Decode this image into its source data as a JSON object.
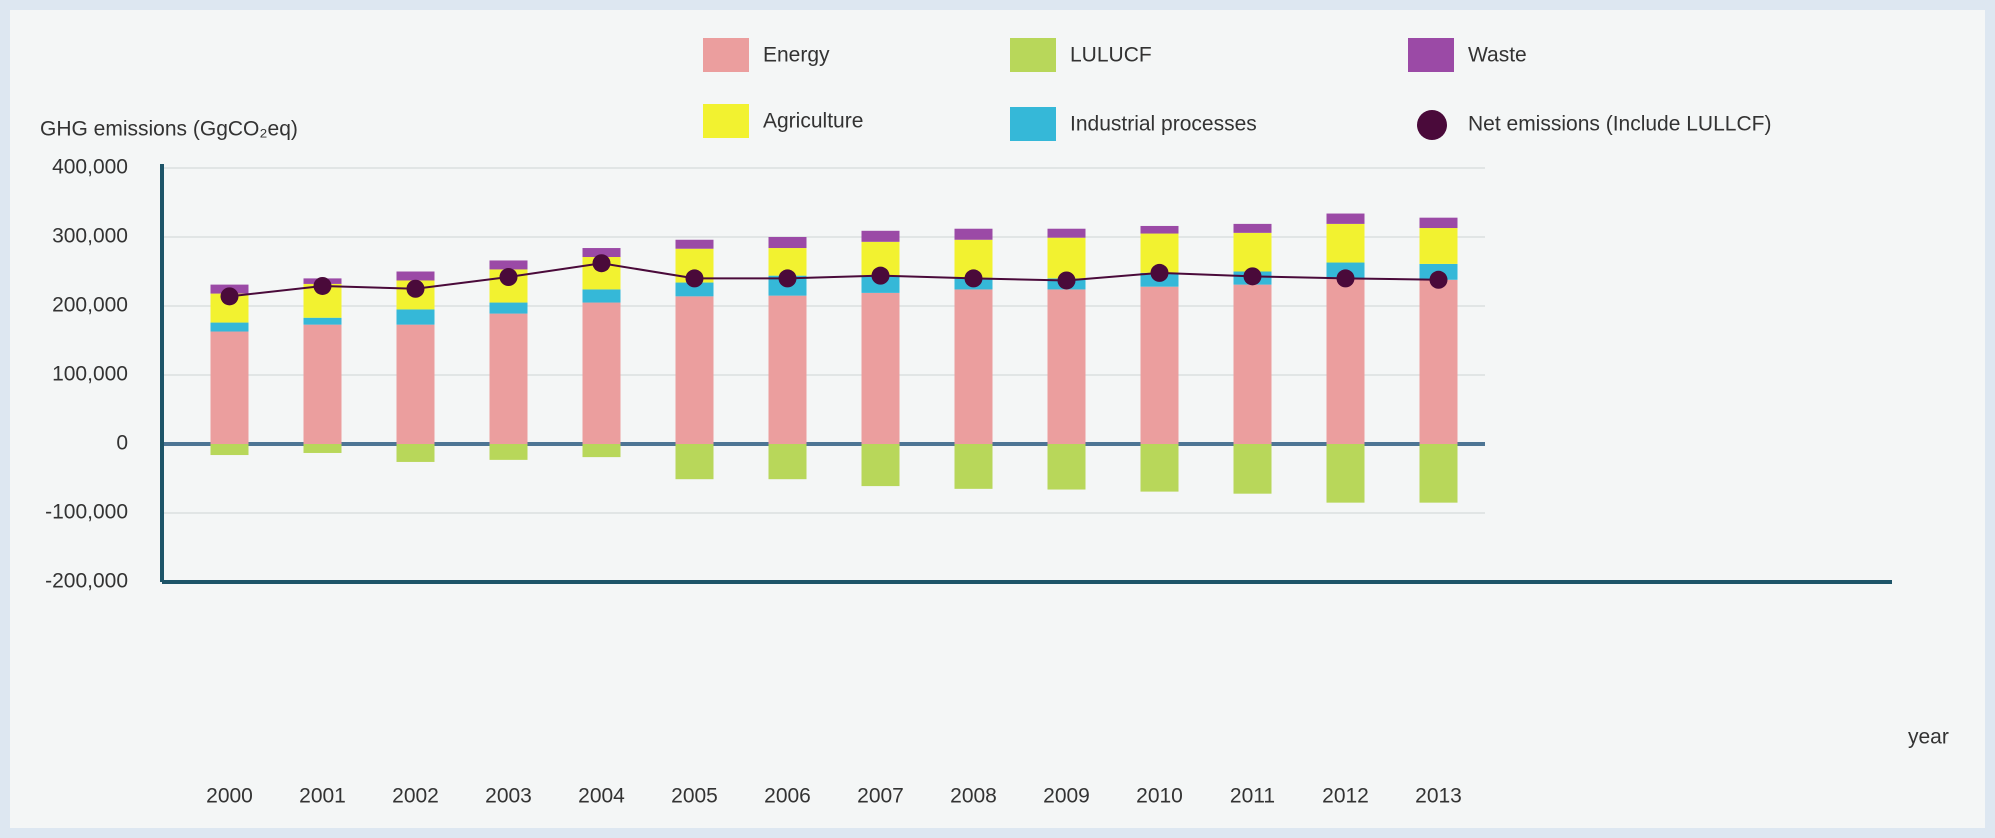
{
  "chart_data": {
    "type": "bar",
    "stacked": true,
    "y_axis_label": "GHG emissions (GgCO₂eq)",
    "x_axis_label": "year",
    "categories": [
      "2000",
      "2001",
      "2002",
      "2003",
      "2004",
      "2005",
      "2006",
      "2007",
      "2008",
      "2009",
      "2010",
      "2011",
      "2012",
      "2013"
    ],
    "series": [
      {
        "name": "Energy",
        "color": "#eb9e9e",
        "values": [
          163000,
          173000,
          173000,
          189000,
          205000,
          214000,
          215000,
          219000,
          224000,
          224000,
          228000,
          231000,
          240000,
          238000
        ]
      },
      {
        "name": "Industrial processes",
        "color": "#35b8d8",
        "values": [
          13000,
          10000,
          22000,
          16000,
          19000,
          20000,
          29000,
          24000,
          17000,
          16000,
          20000,
          19000,
          23000,
          23000
        ]
      },
      {
        "name": "Agriculture",
        "color": "#f2f230",
        "values": [
          42000,
          49000,
          42000,
          48000,
          47000,
          49000,
          40000,
          50000,
          55000,
          59000,
          57000,
          56000,
          56000,
          52000
        ]
      },
      {
        "name": "Waste",
        "color": "#9b4aa6",
        "values": [
          13000,
          8000,
          13000,
          13000,
          13000,
          13000,
          16000,
          16000,
          16000,
          13000,
          11000,
          13000,
          15000,
          15000
        ]
      },
      {
        "name": "LULUCF",
        "color": "#b8d75a",
        "values": [
          -16000,
          -13000,
          -26000,
          -23000,
          -19000,
          -51000,
          -51000,
          -61000,
          -65000,
          -66000,
          -69000,
          -72000,
          -85000,
          -85000
        ]
      },
      {
        "name": "Net emissions (Include LULLCF)",
        "color": "#4a0a3a",
        "type": "line",
        "values": [
          214000,
          229000,
          225000,
          242000,
          262000,
          240000,
          240000,
          244000,
          240000,
          237000,
          248000,
          243000,
          240000,
          238000
        ]
      }
    ],
    "ylim": [
      -200000,
      400000
    ],
    "yticks": [
      {
        "value": -200000,
        "label": "-200,000"
      },
      {
        "value": -100000,
        "label": "-100,000"
      },
      0,
      {
        "value": 100000,
        "label": "100,000"
      },
      {
        "value": 200000,
        "label": "200,000"
      },
      {
        "value": 300000,
        "label": "300,000"
      },
      {
        "value": 400000,
        "label": "400,000"
      }
    ],
    "grid": true,
    "legend": "top"
  }
}
